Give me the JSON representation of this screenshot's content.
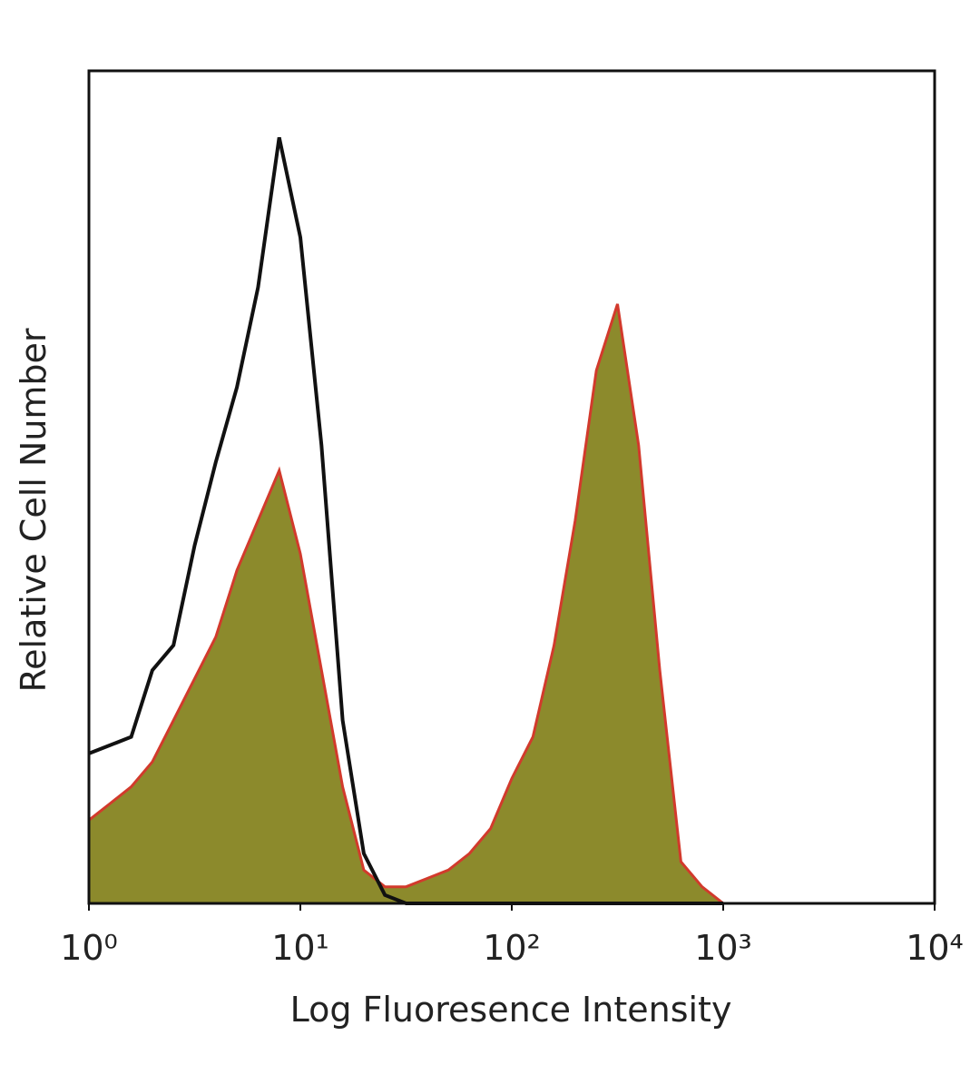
{
  "chart_data": {
    "type": "line",
    "xlabel": "Log Fluoresence Intensity",
    "ylabel": "Relative Cell Number",
    "xscale": "log",
    "xlim": [
      1,
      10000
    ],
    "xticks": [
      {
        "value": 1,
        "label": "10⁰"
      },
      {
        "value": 10,
        "label": "10¹"
      },
      {
        "value": 100,
        "label": "10²"
      },
      {
        "value": 1000,
        "label": "10³"
      },
      {
        "value": 10000,
        "label": "10⁴"
      }
    ],
    "ylim": [
      0,
      100
    ],
    "x": [
      1,
      1.259,
      1.585,
      1.995,
      2.512,
      3.162,
      3.981,
      5.012,
      6.31,
      7.943,
      10,
      12.59,
      15.85,
      19.95,
      25.12,
      31.62,
      39.81,
      50.12,
      63.1,
      79.43,
      100,
      125.9,
      158.5,
      199.5,
      251.2,
      316.2,
      398.1,
      501.2,
      631,
      794.3,
      1000
    ],
    "series": [
      {
        "color": "#d23a2c",
        "fill": "#8c8a2c",
        "filled": true,
        "values": [
          10,
          12,
          14,
          17,
          22,
          27,
          32,
          40,
          46,
          52,
          42,
          28,
          14,
          4,
          2,
          2,
          3,
          4,
          6,
          9,
          15,
          20,
          31,
          46,
          64,
          72,
          55,
          28,
          5,
          2,
          0
        ]
      },
      {
        "color": "#111111",
        "filled": false,
        "values": [
          18,
          19,
          20,
          28,
          31,
          43,
          53,
          62,
          74,
          92,
          80,
          55,
          22,
          6,
          1,
          0,
          0,
          0,
          0,
          0,
          0,
          0,
          0,
          0,
          0,
          0,
          0,
          0,
          0,
          0,
          0
        ]
      }
    ]
  }
}
